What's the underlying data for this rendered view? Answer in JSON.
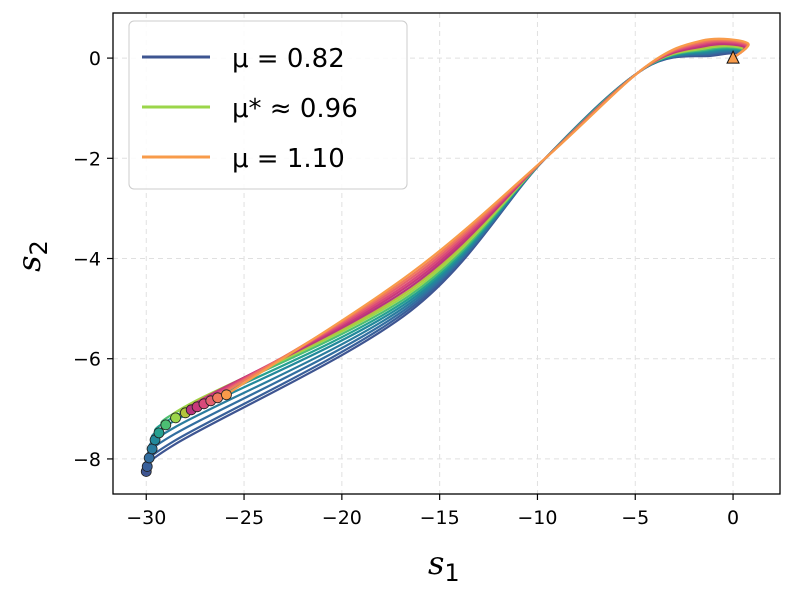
{
  "chart_data": {
    "type": "line",
    "title": "",
    "xlabel": {
      "main": "s",
      "sub": "1"
    },
    "ylabel": {
      "main": "s",
      "sub": "2"
    },
    "xlim": [
      -31.7,
      2.4
    ],
    "ylim": [
      -8.7,
      0.9
    ],
    "xticks": [
      -30,
      -25,
      -20,
      -15,
      -10,
      -5,
      0
    ],
    "xtick_labels": [
      "−30",
      "−25",
      "−20",
      "−15",
      "−10",
      "−5",
      "0"
    ],
    "yticks": [
      0,
      -2,
      -4,
      -6,
      -8
    ],
    "ytick_labels": [
      "0",
      "−2",
      "−4",
      "−6",
      "−8"
    ],
    "grid": true,
    "legend_position": "upper-left",
    "start_marker": {
      "shape": "triangle",
      "x": 0,
      "y": 0,
      "color": "#f89b4a"
    },
    "mu_range": [
      0.82,
      1.1
    ],
    "legend": [
      {
        "label": "μ = 0.82",
        "color": "#3e5591"
      },
      {
        "label": "μ* ≈ 0.96",
        "color": "#9bd64a"
      },
      {
        "label": "μ = 1.10",
        "color": "#f89b4a"
      }
    ],
    "series": [
      {
        "mu": 0.82,
        "color": "#3e5591",
        "end": [
          -30.0,
          -8.25
        ]
      },
      {
        "mu": 0.84,
        "color": "#39609a",
        "end": [
          -29.95,
          -8.15
        ]
      },
      {
        "mu": 0.86,
        "color": "#326ea0",
        "end": [
          -29.85,
          -7.98
        ]
      },
      {
        "mu": 0.88,
        "color": "#2a7c9e",
        "end": [
          -29.7,
          -7.8
        ]
      },
      {
        "mu": 0.9,
        "color": "#22899b",
        "end": [
          -29.55,
          -7.62
        ]
      },
      {
        "mu": 0.92,
        "color": "#25a08f",
        "end": [
          -29.35,
          -7.48
        ]
      },
      {
        "mu": 0.94,
        "color": "#4cbe73",
        "end": [
          -29.0,
          -7.32
        ]
      },
      {
        "mu": 0.96,
        "color": "#9bd64a",
        "end": [
          -28.5,
          -7.18
        ]
      },
      {
        "mu": 0.98,
        "color": "#b3c43c",
        "end": [
          -28.0,
          -7.08
        ]
      },
      {
        "mu": 1.0,
        "color": "#b8357e",
        "end": [
          -27.7,
          -7.02
        ]
      },
      {
        "mu": 1.02,
        "color": "#c9397a",
        "end": [
          -27.4,
          -6.96
        ]
      },
      {
        "mu": 1.04,
        "color": "#d9497a",
        "end": [
          -27.05,
          -6.9
        ]
      },
      {
        "mu": 1.06,
        "color": "#e5606f",
        "end": [
          -26.7,
          -6.84
        ]
      },
      {
        "mu": 1.08,
        "color": "#f07a5c",
        "end": [
          -26.35,
          -6.78
        ]
      },
      {
        "mu": 1.1,
        "color": "#f89b4a",
        "end": [
          -25.9,
          -6.72
        ]
      }
    ]
  }
}
